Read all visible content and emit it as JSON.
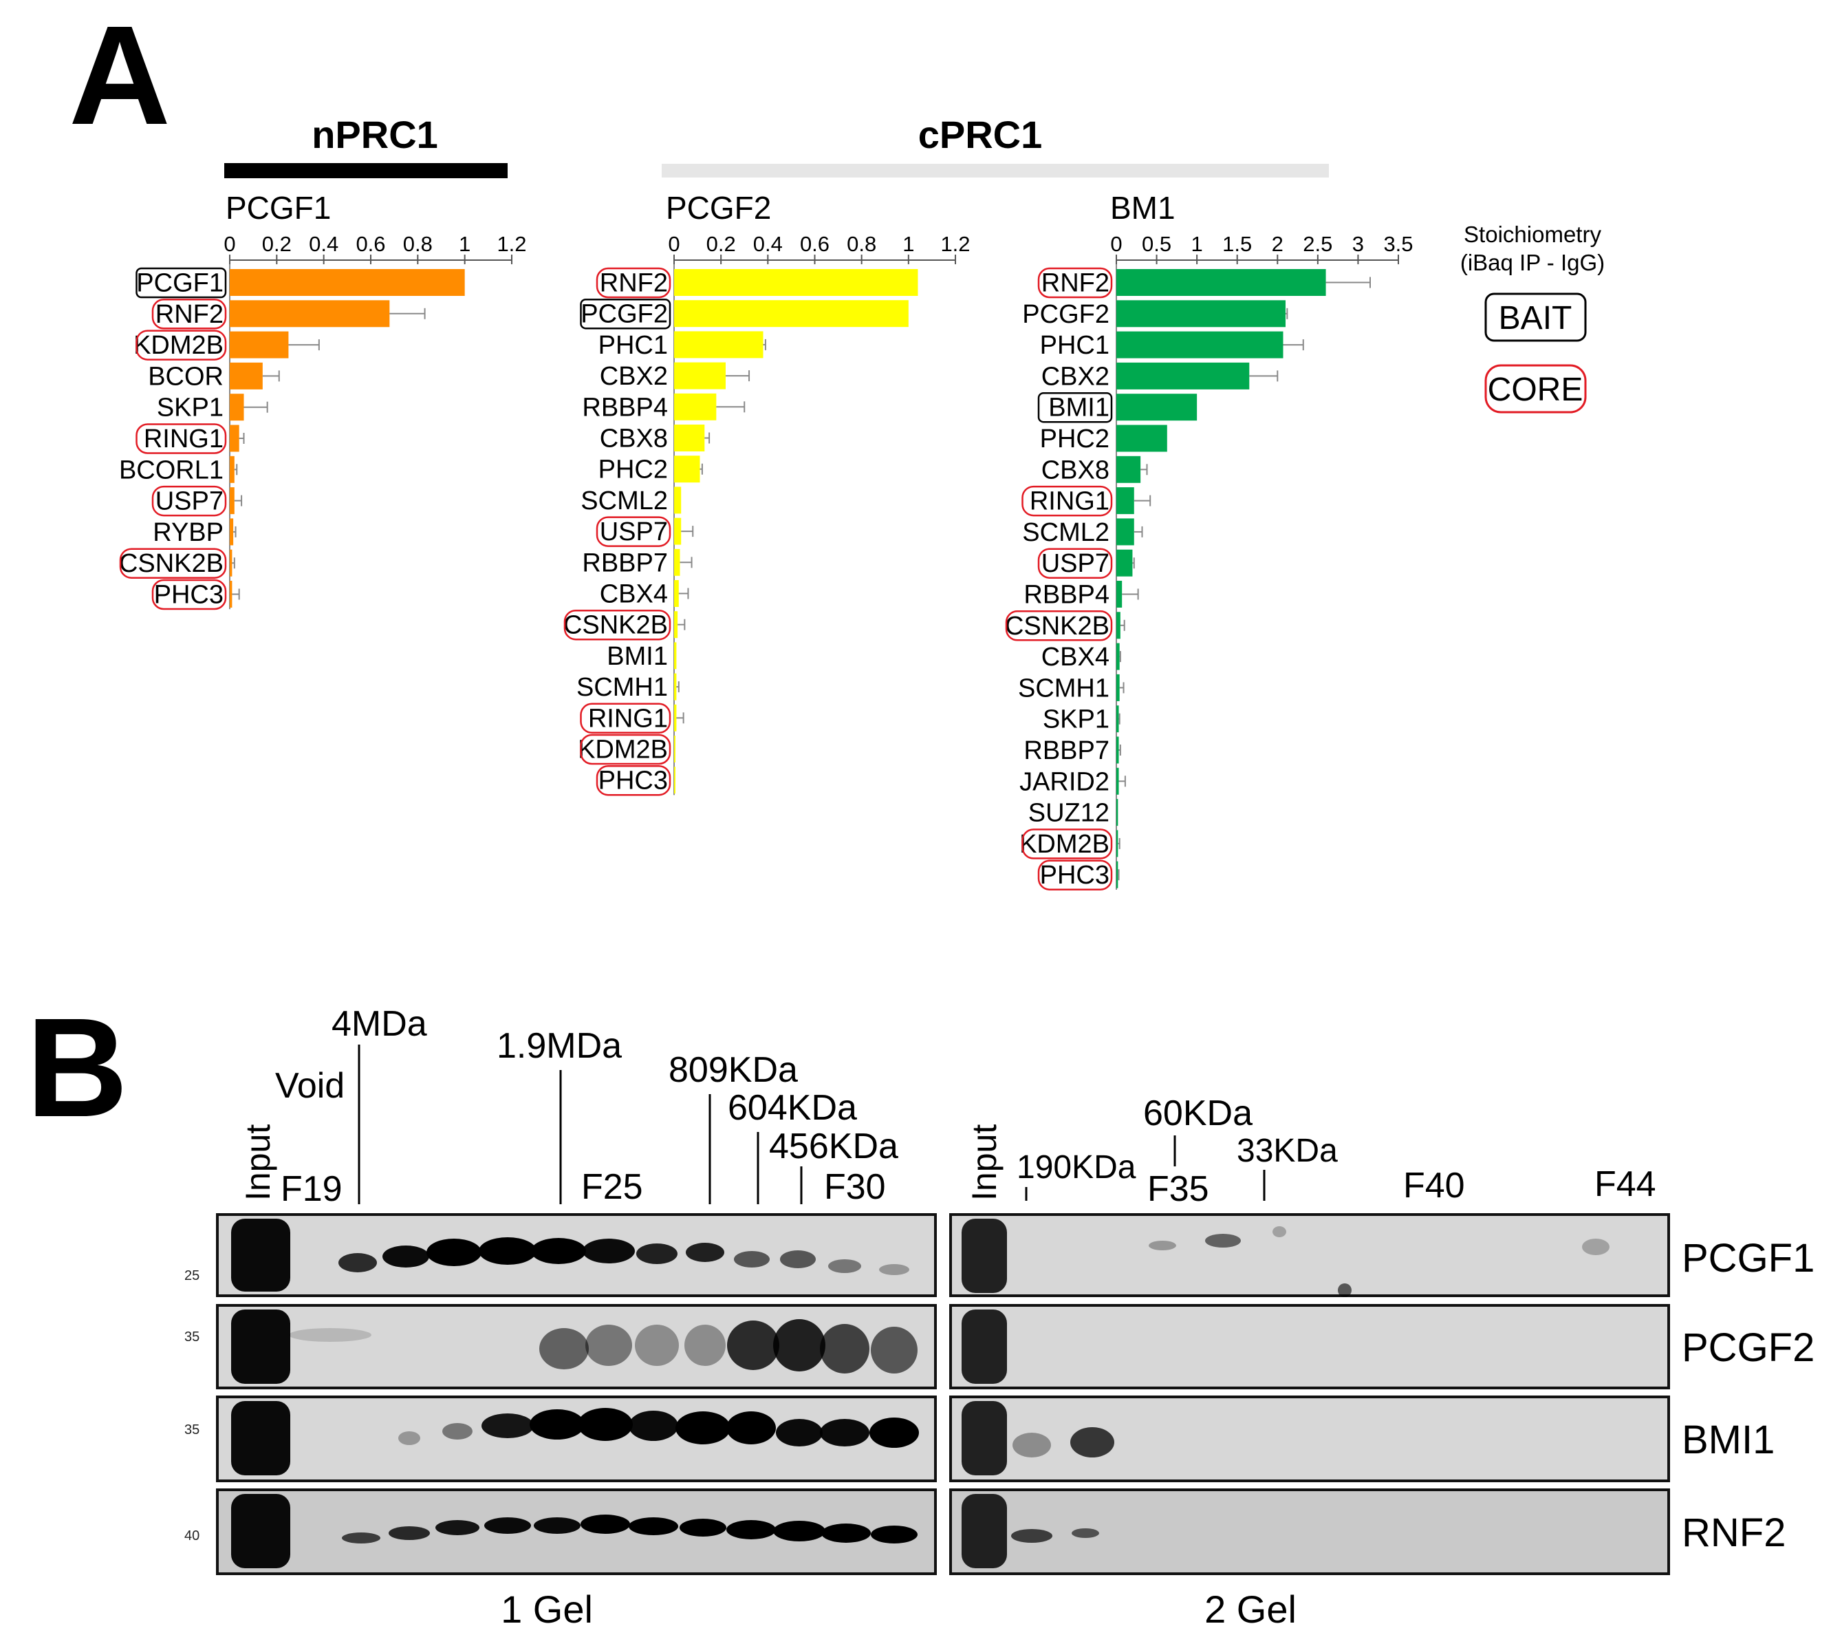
{
  "panel_a_label": "A",
  "panel_b_label": "B",
  "groups": [
    {
      "label": "nPRC1",
      "bar_color": "#000000"
    },
    {
      "label": "cPRC1",
      "bar_color": "#e6e6e6"
    }
  ],
  "legend": {
    "title_line1": "Stoichiometry",
    "title_line2": "(iBaq IP - IgG)",
    "bait_label": "BAIT",
    "core_label": "CORE",
    "bait_color": "#000000",
    "core_color": "#e21b24"
  },
  "chart_data": [
    {
      "type": "bar",
      "orientation": "horizontal",
      "title": "PCGF1",
      "color": "#ff8c00",
      "ticks": [
        "0",
        "0.2",
        "0.4",
        "0.6",
        "0.8",
        "1",
        "1.2"
      ],
      "xlim": [
        0,
        1.2
      ],
      "categories": [
        "PCGF1",
        "RNF2",
        "KDM2B",
        "BCOR",
        "SKP1",
        "RING1",
        "BCORL1",
        "USP7",
        "RYBP",
        "CSNK2B",
        "PHC3"
      ],
      "values": [
        1.0,
        0.68,
        0.25,
        0.14,
        0.06,
        0.04,
        0.02,
        0.02,
        0.015,
        0.01,
        0.01
      ],
      "errors": [
        0.0,
        0.15,
        0.13,
        0.07,
        0.1,
        0.02,
        0.01,
        0.03,
        0.01,
        0.01,
        0.03
      ],
      "bait": [
        "PCGF1"
      ],
      "core": [
        "RNF2",
        "KDM2B",
        "RING1",
        "USP7",
        "CSNK2B",
        "PHC3"
      ]
    },
    {
      "type": "bar",
      "orientation": "horizontal",
      "title": "PCGF2",
      "color": "#ffff00",
      "ticks": [
        "0",
        "0.2",
        "0.4",
        "0.6",
        "0.8",
        "1",
        "1.2"
      ],
      "xlim": [
        0,
        1.2
      ],
      "categories": [
        "RNF2",
        "PCGF2",
        "PHC1",
        "CBX2",
        "RBBP4",
        "CBX8",
        "PHC2",
        "SCML2",
        "USP7",
        "RBBP7",
        "CBX4",
        "CSNK2B",
        "BMI1",
        "SCMH1",
        "RING1",
        "KDM2B",
        "PHC3"
      ],
      "values": [
        1.04,
        1.0,
        0.38,
        0.22,
        0.18,
        0.13,
        0.11,
        0.03,
        0.03,
        0.025,
        0.02,
        0.015,
        0.01,
        0.01,
        0.01,
        0.005,
        0.005
      ],
      "errors": [
        0.0,
        0.0,
        0.01,
        0.1,
        0.12,
        0.02,
        0.01,
        0.0,
        0.05,
        0.05,
        0.04,
        0.03,
        0.0,
        0.01,
        0.03,
        0.0,
        0.0
      ],
      "bait": [
        "PCGF2"
      ],
      "core": [
        "RNF2",
        "USP7",
        "CSNK2B",
        "RING1",
        "KDM2B",
        "PHC3"
      ]
    },
    {
      "type": "bar",
      "orientation": "horizontal",
      "title": "BM1",
      "color": "#00a94f",
      "ticks": [
        "0",
        "0.5",
        "1",
        "1.5",
        "2",
        "2.5",
        "3",
        "3.5"
      ],
      "xlim": [
        0,
        3.5
      ],
      "categories": [
        "RNF2",
        "PCGF2",
        "PHC1",
        "CBX2",
        "BMI1",
        "PHC2",
        "CBX8",
        "RING1",
        "SCML2",
        "USP7",
        "RBBP4",
        "CSNK2B",
        "CBX4",
        "SCMH1",
        "SKP1",
        "RBBP7",
        "JARID2",
        "SUZ12",
        "KDM2B",
        "PHC3"
      ],
      "values": [
        2.6,
        2.1,
        2.07,
        1.65,
        1.0,
        0.63,
        0.3,
        0.22,
        0.22,
        0.2,
        0.07,
        0.05,
        0.04,
        0.04,
        0.03,
        0.03,
        0.03,
        0.02,
        0.02,
        0.02
      ],
      "errors": [
        0.55,
        0.02,
        0.25,
        0.35,
        0.0,
        0.0,
        0.08,
        0.2,
        0.1,
        0.02,
        0.2,
        0.05,
        0.01,
        0.05,
        0.01,
        0.02,
        0.08,
        0.0,
        0.02,
        0.01
      ],
      "bait": [
        "BMI1"
      ],
      "core": [
        "RNF2",
        "RING1",
        "USP7",
        "CSNK2B",
        "KDM2B",
        "PHC3"
      ]
    }
  ],
  "blot": {
    "size_markers": [
      "Void",
      "4MDa",
      "1.9MDa",
      "809KDa",
      "604KDa",
      "456KDa",
      "190KDa",
      "60KDa",
      "33KDa"
    ],
    "fractions_gel1": [
      "Input",
      "F19",
      "F25",
      "F30"
    ],
    "fractions_gel2": [
      "Input",
      "F35",
      "F40",
      "F44"
    ],
    "rows": [
      "PCGF1",
      "PCGF2",
      "BMI1",
      "RNF2"
    ],
    "mw": [
      "25",
      "35",
      "35",
      "40"
    ],
    "gel_labels": [
      "1 Gel",
      "2 Gel"
    ]
  }
}
